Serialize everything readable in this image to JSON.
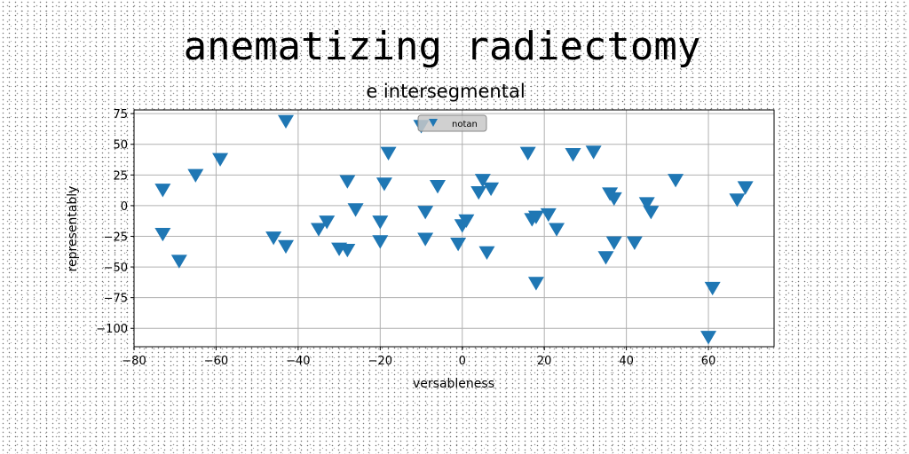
{
  "chart_data": {
    "type": "scatter",
    "title": "anematizing radiectomy",
    "subtitle": "e intersegmental",
    "xlabel": "versableness",
    "ylabel": "representably",
    "xlim": [
      -80,
      76
    ],
    "ylim": [
      -115,
      78
    ],
    "xticks": [
      -80,
      -60,
      -40,
      -20,
      0,
      20,
      40,
      60
    ],
    "yticks": [
      75,
      50,
      25,
      0,
      -25,
      -50,
      -75,
      -100
    ],
    "xtick_labels": [
      "−80",
      "−60",
      "−40",
      "−20",
      "0",
      "20",
      "40",
      "60"
    ],
    "ytick_labels": [
      "75",
      "50",
      "25",
      "0",
      "−25",
      "−50",
      "−75",
      "−100"
    ],
    "grid": true,
    "legend_position": "top-center",
    "series": [
      {
        "name": "notan",
        "marker": "triangle-down",
        "color": "#1f77b4",
        "points": [
          [
            -43,
            69
          ],
          [
            -10,
            65
          ],
          [
            -73,
            13
          ],
          [
            -65,
            25
          ],
          [
            -59,
            38
          ],
          [
            -73,
            -23
          ],
          [
            -69,
            -45
          ],
          [
            -46,
            -26
          ],
          [
            -43,
            -33
          ],
          [
            -35,
            -19
          ],
          [
            -33,
            -13
          ],
          [
            -30,
            -35
          ],
          [
            -28,
            -36
          ],
          [
            -28,
            20
          ],
          [
            -26,
            -3
          ],
          [
            -20,
            -13
          ],
          [
            -20,
            -29
          ],
          [
            -19,
            18
          ],
          [
            -18,
            43
          ],
          [
            -9,
            -5
          ],
          [
            -9,
            -27
          ],
          [
            -6,
            16
          ],
          [
            -1,
            -31
          ],
          [
            0,
            -16
          ],
          [
            1,
            -12
          ],
          [
            4,
            11
          ],
          [
            5,
            21
          ],
          [
            6,
            -38
          ],
          [
            7,
            14
          ],
          [
            16,
            43
          ],
          [
            17,
            -11
          ],
          [
            18,
            -9
          ],
          [
            18,
            -63
          ],
          [
            21,
            -7
          ],
          [
            23,
            -19
          ],
          [
            27,
            42
          ],
          [
            32,
            44
          ],
          [
            35,
            -42
          ],
          [
            36,
            10
          ],
          [
            37,
            -30
          ],
          [
            37,
            6
          ],
          [
            42,
            -30
          ],
          [
            45,
            2
          ],
          [
            46,
            -5
          ],
          [
            52,
            21
          ],
          [
            60,
            -107
          ],
          [
            61,
            -67
          ],
          [
            67,
            5
          ],
          [
            69,
            15
          ]
        ]
      }
    ]
  }
}
